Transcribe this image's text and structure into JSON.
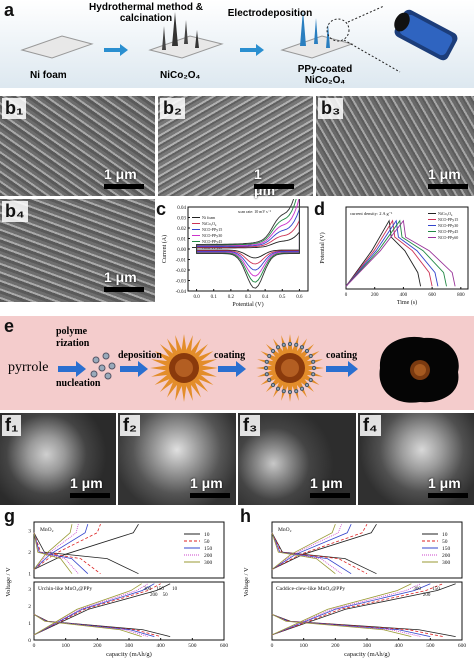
{
  "panel_a": {
    "letter": "a",
    "step1": "Hydrothermal method & calcination",
    "step2": "Electrodeposition",
    "label_ni": "Ni foam",
    "label_nico": "NiCo₂O₄",
    "label_ppy": "PPy-coated NiCo₂O₄"
  },
  "panel_b": {
    "letters": [
      "b₁",
      "b₂",
      "b₃",
      "b₄"
    ],
    "scale": "1 μm"
  },
  "panel_c": {
    "letter": "c",
    "chart_data": {
      "type": "line",
      "title": "",
      "annotation": "scan rate: 10 mV s⁻¹",
      "xlabel": "Potential (V)",
      "ylabel": "Current (A)",
      "xlim": [
        -0.05,
        0.65
      ],
      "ylim": [
        -0.04,
        0.04
      ],
      "xticks": [
        "0.0",
        "0.1",
        "0.2",
        "0.3",
        "0.4",
        "0.5",
        "0.6"
      ],
      "yticks": [
        "0.04",
        "0.03",
        "0.02",
        "0.01",
        "0.00",
        "-0.01",
        "-0.02",
        "-0.03",
        "-0.04"
      ],
      "legend": [
        "Ni foam",
        "NiCo₂O₄",
        "NCO-PPy15",
        "NCO-PPy30",
        "NCO-PPy45",
        "NCO-PPy60"
      ],
      "colors": [
        "#222222",
        "#cc3355",
        "#3344cc",
        "#cc33cc",
        "#228844",
        "#333333"
      ]
    }
  },
  "panel_d": {
    "letter": "d",
    "chart_data": {
      "type": "line",
      "annotation": "current density: 2 A g⁻¹",
      "xlabel": "Time (s)",
      "ylabel": "Potential (V)",
      "xlim": [
        0,
        850
      ],
      "xticks": [
        "0",
        "200",
        "400",
        "600",
        "800"
      ],
      "legend": [
        "NiCo₂O₄",
        "NCO-PPy15",
        "NCO-PPy30",
        "NCO-PPy45",
        "NCO-PPy60"
      ],
      "colors": [
        "#222222",
        "#cc3355",
        "#3344cc",
        "#228844",
        "#993399"
      ],
      "discharge_end_s": [
        520,
        600,
        640,
        700,
        760
      ]
    }
  },
  "panel_e": {
    "letter": "e",
    "pyrrole": "pyrrole",
    "polymerization": "polyme rization",
    "nucleation": "nucleation",
    "deposition": "deposition",
    "coating1": "coating",
    "coating2": "coating"
  },
  "panel_f": {
    "letters": [
      "f₁",
      "f₂",
      "f₃",
      "f₄"
    ],
    "scale": "1 μm"
  },
  "panel_g": {
    "letter": "g",
    "chart_data": {
      "type": "line",
      "top_label": "MnO₂",
      "bottom_label": "Urchin-like MnO₂@PPy",
      "xlabel": "capacity (mAh/g)",
      "ylabel": "Voltage / V",
      "xticks": [
        "0",
        "100",
        "200",
        "300",
        "400",
        "500",
        "600"
      ],
      "yticks_top": [
        "3",
        "2",
        "1"
      ],
      "yticks_bottom": [
        "3",
        "2",
        "1",
        "0"
      ],
      "legend": [
        "10",
        "50",
        "150",
        "200",
        "300"
      ],
      "colors": [
        "#222222",
        "#dd2222",
        "#3344cc",
        "#cc44cc",
        "#999933"
      ],
      "top_end_capacity": [
        330,
        210,
        170,
        140,
        120
      ],
      "bottom_end_capacity": [
        430,
        400,
        380,
        360,
        340
      ],
      "bottom_rate_labels": [
        "10",
        "50",
        "150",
        "200",
        "300"
      ]
    }
  },
  "panel_h": {
    "letter": "h",
    "chart_data": {
      "type": "line",
      "top_label": "MnO₂",
      "bottom_label": "Caddice-clew-like MnO₂@PPy",
      "xlabel": "capacity (mAh/g)",
      "ylabel": "Voltage / V",
      "xticks": [
        "0",
        "100",
        "200",
        "300",
        "400",
        "500",
        "600"
      ],
      "legend": [
        "10",
        "50",
        "150",
        "200",
        "300"
      ],
      "colors": [
        "#222222",
        "#dd2222",
        "#3344cc",
        "#cc44cc",
        "#999933"
      ],
      "top_end_capacity": [
        330,
        300,
        250,
        220,
        200
      ],
      "bottom_end_capacity": [
        580,
        540,
        500,
        470,
        440
      ],
      "bottom_rate_labels": [
        "150",
        "200",
        "300"
      ]
    }
  }
}
